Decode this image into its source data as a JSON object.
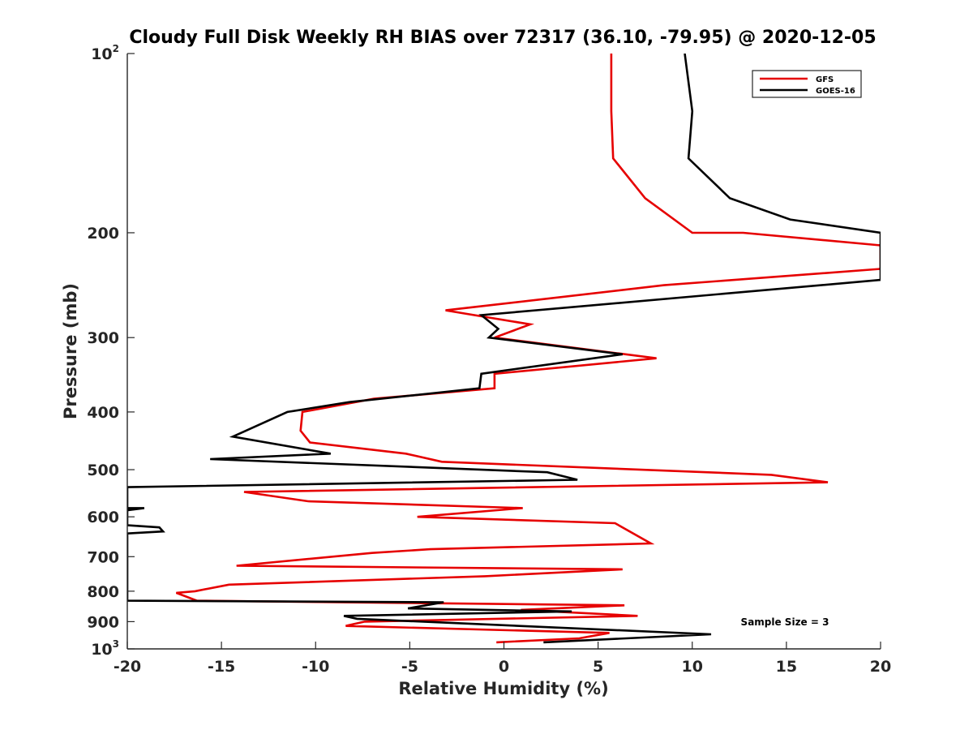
{
  "chart_data": {
    "type": "line",
    "title": "Cloudy Full Disk Weekly RH BIAS over 72317 (36.10, -79.95) @ 2020-12-05",
    "xlabel": "Relative Humidity (%)",
    "ylabel": "Pressure (mb)",
    "xlim": [
      -20,
      20
    ],
    "ylim": [
      100,
      1000
    ],
    "y_scale": "log",
    "y_reversed": true,
    "grid": false,
    "legend_position": "top-right",
    "annotation": "Sample Size = 3",
    "x_ticks": [
      "-20",
      "-15",
      "-10",
      "-5",
      "0",
      "5",
      "10",
      "15",
      "20"
    ],
    "y_ticks": [
      {
        "value": 100,
        "base": "10",
        "exp": "2"
      },
      {
        "value": 200,
        "base": "200",
        "exp": ""
      },
      {
        "value": 300,
        "base": "300",
        "exp": ""
      },
      {
        "value": 400,
        "base": "400",
        "exp": ""
      },
      {
        "value": 500,
        "base": "500",
        "exp": ""
      },
      {
        "value": 600,
        "base": "600",
        "exp": ""
      },
      {
        "value": 700,
        "base": "700",
        "exp": ""
      },
      {
        "value": 800,
        "base": "800",
        "exp": ""
      },
      {
        "value": 900,
        "base": "900",
        "exp": ""
      },
      {
        "value": 1000,
        "base": "10",
        "exp": "3"
      }
    ],
    "series": [
      {
        "name": "GFS",
        "color": "#e60000",
        "points": [
          [
            5.7,
            100
          ],
          [
            5.7,
            125
          ],
          [
            5.8,
            150
          ],
          [
            7.5,
            175
          ],
          [
            10,
            200
          ],
          [
            12.7,
            200
          ],
          [
            20,
            210
          ],
          [
            20,
            230
          ],
          [
            8.5,
            245
          ],
          [
            -3.1,
            270
          ],
          [
            1.4,
            285
          ],
          [
            -0.5,
            300
          ],
          [
            8.1,
            325
          ],
          [
            -0.5,
            345
          ],
          [
            -0.5,
            365
          ],
          [
            -6.9,
            380
          ],
          [
            -10.7,
            400
          ],
          [
            -10.8,
            430
          ],
          [
            -10.3,
            450
          ],
          [
            -5.2,
            470
          ],
          [
            -3.3,
            485
          ],
          [
            14.2,
            510
          ],
          [
            17.2,
            525
          ],
          [
            -13.8,
            545
          ],
          [
            -10.4,
            565
          ],
          [
            1.0,
            580
          ],
          [
            -4.6,
            600
          ],
          [
            5.9,
            615
          ],
          [
            7.8,
            665
          ],
          [
            -3.9,
            680
          ],
          [
            -7.0,
            690
          ],
          [
            -14.2,
            725
          ],
          [
            6.3,
            735
          ],
          [
            -1.0,
            755
          ],
          [
            -14.6,
            780
          ],
          [
            -16.4,
            800
          ],
          [
            -17.4,
            805
          ],
          [
            -16.3,
            830
          ],
          [
            6.4,
            845
          ],
          [
            0.9,
            860
          ],
          [
            7.1,
            880
          ],
          [
            -7.4,
            900
          ],
          [
            -8.4,
            915
          ],
          [
            5.6,
            940
          ],
          [
            4.0,
            960
          ],
          [
            -0.4,
            975
          ]
        ]
      },
      {
        "name": "GOES-16",
        "color": "#000000",
        "points": [
          [
            9.6,
            100
          ],
          [
            10,
            125
          ],
          [
            9.8,
            150
          ],
          [
            12,
            175
          ],
          [
            15.2,
            190
          ],
          [
            20,
            200
          ],
          [
            20,
            240
          ],
          [
            -1.2,
            275
          ],
          [
            -0.3,
            290
          ],
          [
            -0.8,
            300
          ],
          [
            6.3,
            320
          ],
          [
            -1.2,
            345
          ],
          [
            -1.3,
            365
          ],
          [
            -8.2,
            385
          ],
          [
            -11.5,
            400
          ],
          [
            -14.4,
            440
          ],
          [
            -9.2,
            470
          ],
          [
            -15.6,
            480
          ],
          [
            2.3,
            505
          ],
          [
            3.9,
            520
          ],
          [
            -20,
            535
          ],
          [
            -20,
            580
          ],
          [
            -19.1,
            580
          ],
          [
            -20,
            585
          ],
          [
            -20,
            620
          ],
          [
            -18.3,
            625
          ],
          [
            -18.1,
            635
          ],
          [
            -20,
            640
          ],
          [
            -20,
            830
          ],
          [
            -3.2,
            835
          ],
          [
            -5.1,
            855
          ],
          [
            3.6,
            865
          ],
          [
            -8.5,
            880
          ],
          [
            -7.8,
            890
          ],
          [
            11.0,
            945
          ],
          [
            2.1,
            975
          ]
        ]
      }
    ]
  }
}
